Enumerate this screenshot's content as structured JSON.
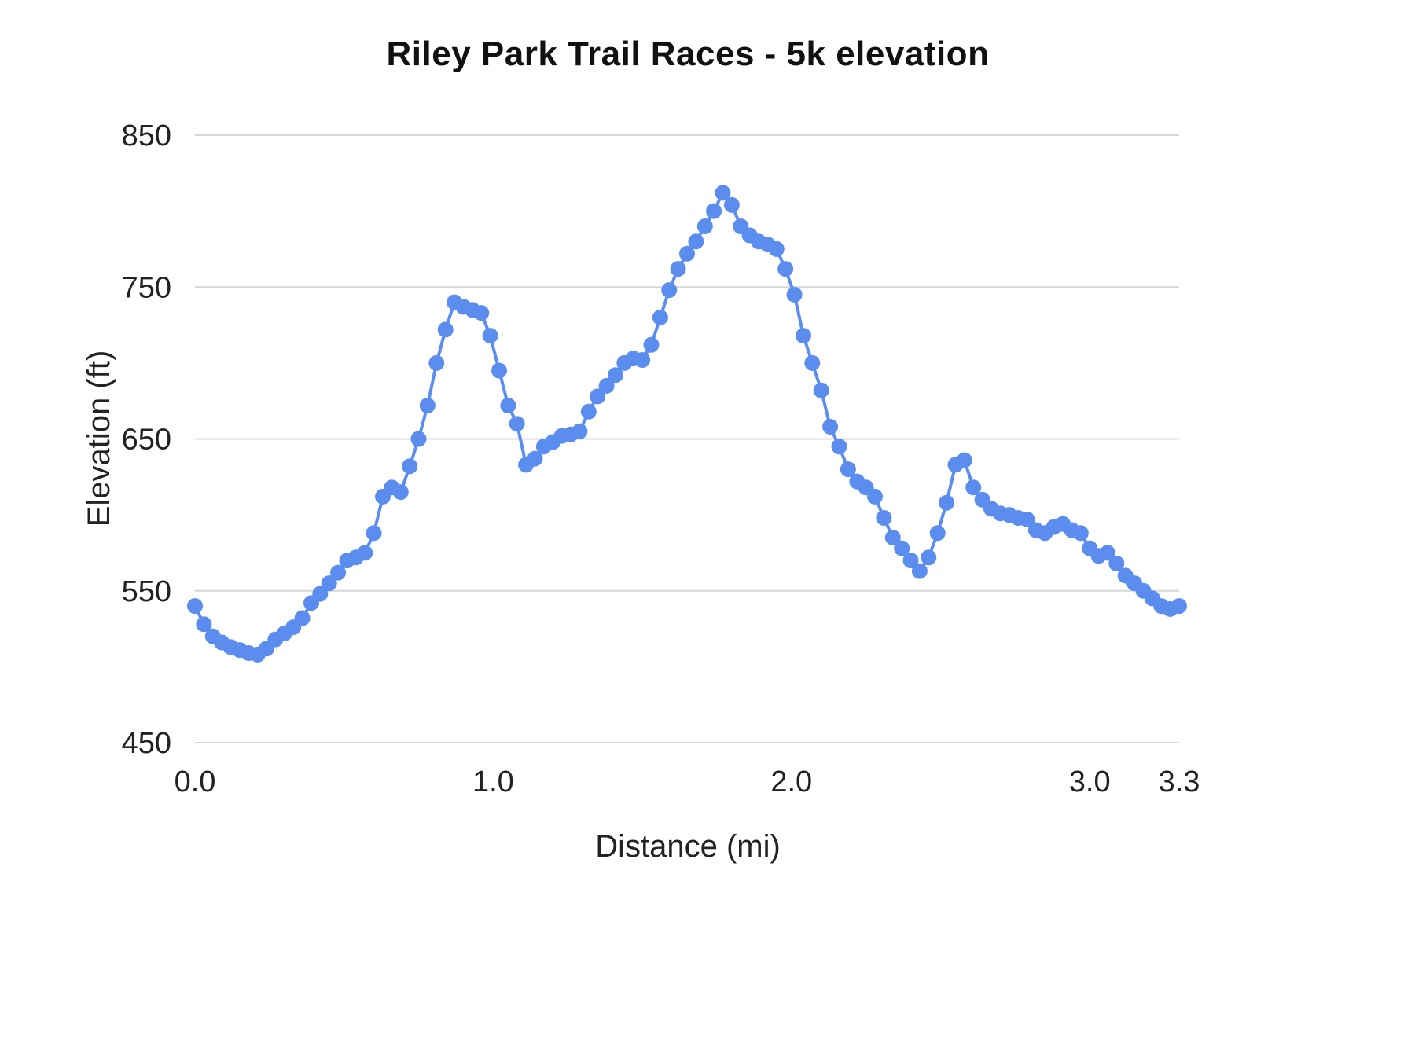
{
  "chart_data": {
    "type": "line",
    "title": "Riley Park Trail Races - 5k elevation",
    "xlabel": "Distance (mi)",
    "ylabel": "Elevation (ft)",
    "xlim": [
      0.0,
      3.3
    ],
    "ylim": [
      450,
      850
    ],
    "x_ticks": [
      "0.0",
      "1.0",
      "2.0",
      "3.0",
      "3.3"
    ],
    "x_tick_values": [
      0.0,
      1.0,
      2.0,
      3.0,
      3.3
    ],
    "y_ticks": [
      "450",
      "550",
      "650",
      "750",
      "850"
    ],
    "y_tick_values": [
      450,
      550,
      650,
      750,
      850
    ],
    "grid": "horizontal",
    "legend": "none",
    "line_color": "#5b8def",
    "marker": "circle",
    "x": [
      0.0,
      0.03,
      0.06,
      0.09,
      0.12,
      0.15,
      0.18,
      0.21,
      0.24,
      0.27,
      0.3,
      0.33,
      0.36,
      0.39,
      0.42,
      0.45,
      0.48,
      0.51,
      0.54,
      0.57,
      0.6,
      0.63,
      0.66,
      0.69,
      0.72,
      0.75,
      0.78,
      0.81,
      0.84,
      0.87,
      0.9,
      0.93,
      0.96,
      0.99,
      1.02,
      1.05,
      1.08,
      1.11,
      1.14,
      1.17,
      1.2,
      1.23,
      1.26,
      1.29,
      1.32,
      1.35,
      1.38,
      1.41,
      1.44,
      1.47,
      1.5,
      1.53,
      1.56,
      1.59,
      1.62,
      1.65,
      1.68,
      1.71,
      1.74,
      1.77,
      1.8,
      1.83,
      1.86,
      1.89,
      1.92,
      1.95,
      1.98,
      2.01,
      2.04,
      2.07,
      2.1,
      2.13,
      2.16,
      2.19,
      2.22,
      2.25,
      2.28,
      2.31,
      2.34,
      2.37,
      2.4,
      2.43,
      2.46,
      2.49,
      2.52,
      2.55,
      2.58,
      2.61,
      2.64,
      2.67,
      2.7,
      2.73,
      2.76,
      2.79,
      2.82,
      2.85,
      2.88,
      2.91,
      2.94,
      2.97,
      3.0,
      3.03,
      3.06,
      3.09,
      3.12,
      3.15,
      3.18,
      3.21,
      3.24,
      3.27,
      3.3
    ],
    "y": [
      540,
      528,
      520,
      516,
      513,
      511,
      509,
      508,
      512,
      518,
      522,
      526,
      532,
      542,
      548,
      555,
      562,
      570,
      572,
      575,
      588,
      612,
      618,
      615,
      632,
      650,
      672,
      700,
      722,
      740,
      737,
      735,
      733,
      718,
      695,
      672,
      660,
      633,
      637,
      645,
      648,
      652,
      653,
      655,
      668,
      678,
      685,
      692,
      700,
      703,
      702,
      712,
      730,
      748,
      762,
      772,
      780,
      790,
      800,
      812,
      804,
      790,
      784,
      780,
      778,
      775,
      762,
      745,
      718,
      700,
      682,
      658,
      645,
      630,
      622,
      618,
      612,
      598,
      585,
      578,
      570,
      563,
      572,
      588,
      608,
      633,
      636,
      618,
      610,
      604,
      601,
      600,
      598,
      597,
      590,
      588,
      592,
      594,
      590,
      588,
      578,
      573,
      575,
      568,
      560,
      555,
      550,
      545,
      540,
      538,
      540
    ],
    "colors": {
      "grid_line": "#d6d6d6",
      "title_text": "#111111",
      "axis_text": "#222222",
      "background": "#ffffff"
    }
  }
}
